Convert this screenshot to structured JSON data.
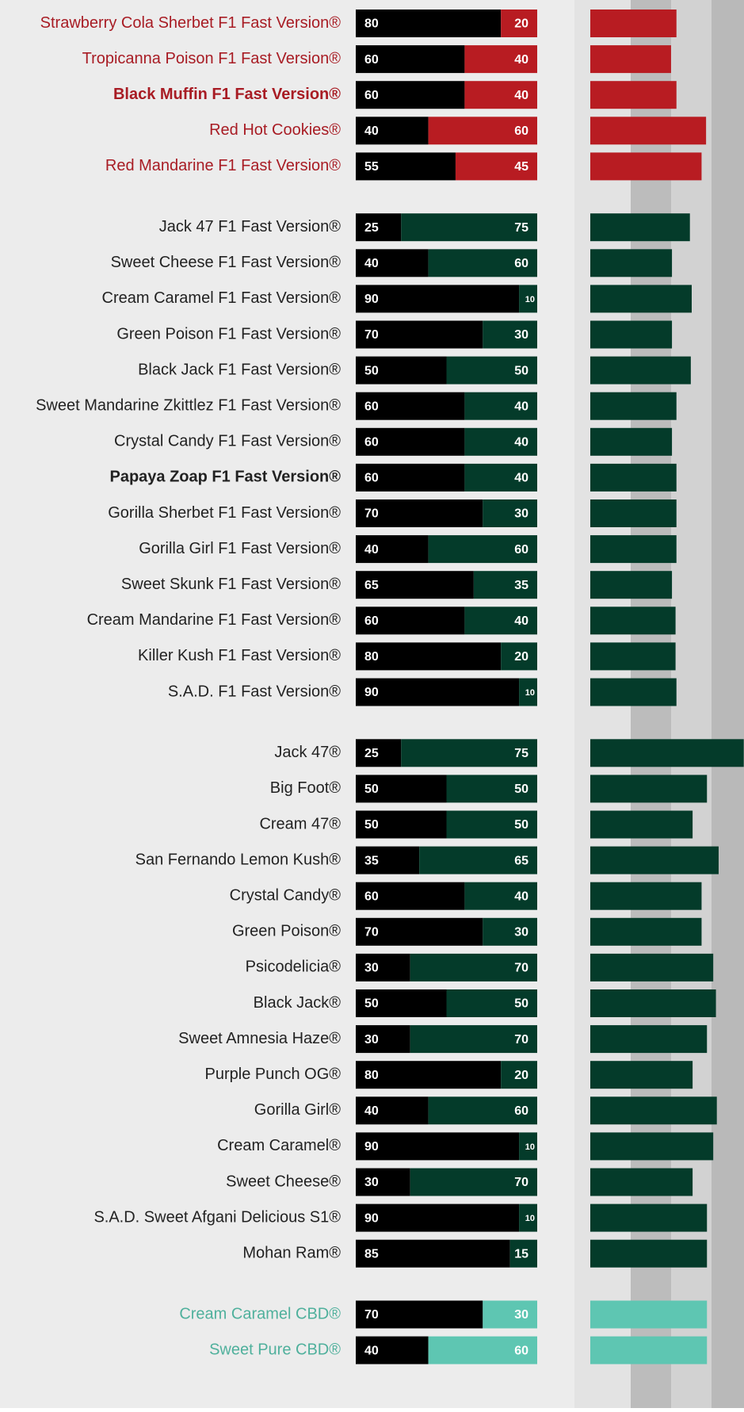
{
  "chart_data": {
    "type": "split-bar",
    "groups": [
      {
        "label_color": "#a81c24",
        "bold_index": 2,
        "length_color": "#b81c22",
        "categories": [
          "Strawberry Cola Sherbet F1 Fast Version®",
          "Tropicanna Poison F1 Fast Version®",
          "Black Muffin F1 Fast Version®",
          "Red Hot Cookies®",
          "Red Mandarine F1 Fast Version®"
        ],
        "series": [
          {
            "color": "#000000",
            "values": [
              80,
              60,
              60,
              40,
              55
            ]
          },
          {
            "color": "#b81c22",
            "values": [
              20,
              40,
              40,
              60,
              45
            ]
          }
        ],
        "lengths": [
          96,
          90,
          96,
          129,
          124
        ]
      },
      {
        "label_color": "#222222",
        "bold_index": 7,
        "length_color": "#043b2a",
        "categories": [
          "Jack 47 F1 Fast Version®",
          "Sweet Cheese F1 Fast Version®",
          "Cream Caramel F1 Fast Version®",
          "Green Poison F1 Fast Version®",
          "Black Jack F1 Fast Version®",
          "Sweet Mandarine Zkittlez F1 Fast Version®",
          "Crystal Candy F1 Fast Version®",
          "Papaya Zoap F1 Fast Version®",
          "Gorilla Sherbet F1 Fast Version®",
          "Gorilla Girl F1 Fast Version®",
          "Sweet Skunk F1 Fast Version®",
          "Cream Mandarine F1 Fast Version®",
          "Killer Kush F1 Fast Version®",
          "S.A.D. F1 Fast Version®"
        ],
        "series": [
          {
            "color": "#000000",
            "values": [
              25,
              40,
              90,
              70,
              50,
              60,
              60,
              60,
              70,
              40,
              65,
              60,
              80,
              90
            ]
          },
          {
            "color": "#043b2a",
            "values": [
              75,
              60,
              10,
              30,
              50,
              40,
              40,
              40,
              30,
              60,
              35,
              40,
              20,
              10
            ]
          }
        ],
        "lengths": [
          111,
          91,
          113,
          91,
          112,
          96,
          91,
          96,
          96,
          96,
          91,
          95,
          95,
          96
        ]
      },
      {
        "label_color": "#222222",
        "length_color": "#043b2a",
        "categories": [
          "Jack 47®",
          "Big Foot®",
          "Cream 47®",
          "San Fernando Lemon Kush®",
          "Crystal Candy®",
          "Green Poison®",
          "Psicodelicia®",
          "Black Jack®",
          "Sweet Amnesia Haze®",
          "Purple Punch OG®",
          "Gorilla Girl®",
          "Cream Caramel®",
          "Sweet Cheese®",
          "S.A.D. Sweet Afgani Delicious S1®",
          "Mohan Ram®"
        ],
        "series": [
          {
            "color": "#000000",
            "values": [
              25,
              50,
              50,
              35,
              60,
              70,
              30,
              50,
              30,
              80,
              40,
              90,
              30,
              90,
              85
            ]
          },
          {
            "color": "#043b2a",
            "values": [
              75,
              50,
              50,
              65,
              40,
              30,
              70,
              50,
              70,
              20,
              60,
              10,
              70,
              10,
              15
            ]
          }
        ],
        "lengths": [
          171,
          130,
          114,
          143,
          124,
          124,
          137,
          140,
          130,
          114,
          141,
          137,
          114,
          130,
          130
        ]
      },
      {
        "label_color": "#4fb09c",
        "length_color": "#5ec6b2",
        "categories": [
          "Cream Caramel CBD®",
          "Sweet Pure CBD®"
        ],
        "series": [
          {
            "color": "#000000",
            "values": [
              70,
              40
            ]
          },
          {
            "color": "#5ec6b2",
            "values": [
              30,
              60
            ]
          }
        ],
        "lengths": [
          130,
          130
        ]
      }
    ]
  }
}
